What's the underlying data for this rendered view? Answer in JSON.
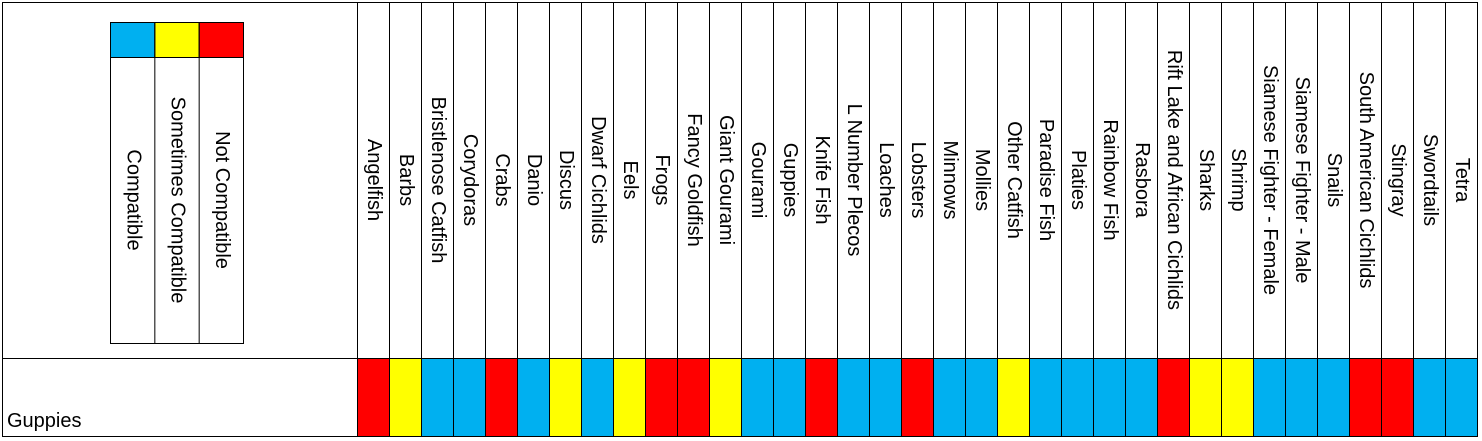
{
  "legend": [
    {
      "label": "Compatible",
      "color": "#00b0f0"
    },
    {
      "label": "Sometimes Compatible",
      "color": "#ffff00"
    },
    {
      "label": "Not Compatible",
      "color": "#ff0000"
    }
  ],
  "table": {
    "columns": [
      "Angelfish",
      "Barbs",
      "Bristlenose Catfish",
      "Corydoras",
      "Crabs",
      "Danio",
      "Discus",
      "Dwarf Cichlids",
      "Eels",
      "Frogs",
      "Fancy Goldfish",
      "Giant Gourami",
      "Gourami",
      "Guppies",
      "Knife Fish",
      "L Number Plecos",
      "Loaches",
      "Lobsters",
      "Minnows",
      "Mollies",
      "Other Catfish",
      "Paradise Fish",
      "Platies",
      "Rainbow Fish",
      "Rasbora",
      "Rift Lake and African Cichlids",
      "Sharks",
      "Shrimp",
      "Siamese Fighter - Female",
      "Siamese Fighter - Male",
      "Snails",
      "South American Cichlids",
      "Stingray",
      "Swordtails",
      "Tetra"
    ],
    "rows": [
      {
        "label": "Guppies",
        "cells": [
          "#ff0000",
          "#ffff00",
          "#00b0f0",
          "#00b0f0",
          "#ff0000",
          "#00b0f0",
          "#ffff00",
          "#00b0f0",
          "#ffff00",
          "#ff0000",
          "#ff0000",
          "#ffff00",
          "#00b0f0",
          "#00b0f0",
          "#ff0000",
          "#00b0f0",
          "#00b0f0",
          "#ff0000",
          "#00b0f0",
          "#00b0f0",
          "#ffff00",
          "#00b0f0",
          "#00b0f0",
          "#00b0f0",
          "#00b0f0",
          "#ff0000",
          "#ffff00",
          "#ffff00",
          "#00b0f0",
          "#00b0f0",
          "#00b0f0",
          "#ff0000",
          "#ff0000",
          "#00b0f0",
          "#00b0f0"
        ]
      }
    ]
  }
}
